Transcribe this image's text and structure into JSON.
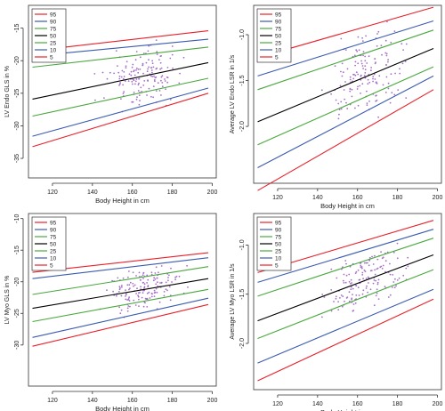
{
  "chart_data": [
    {
      "type": "line",
      "xlabel": "Body Height in cm",
      "ylabel": "LV Endo GLS in %",
      "xlim": [
        108,
        202
      ],
      "ylim": [
        -38,
        -11.5
      ],
      "xticks": [
        "120",
        "140",
        "160",
        "180",
        "200"
      ],
      "yticks": [
        "-15",
        "-20",
        "-25",
        "-30",
        "-35"
      ],
      "xtick_values": [
        120,
        140,
        160,
        180,
        200
      ],
      "ytick_values": [
        -15,
        -20,
        -25,
        -30,
        -35
      ],
      "legend_position": "top-left",
      "series": [
        {
          "name": "95",
          "color": "#e8202a",
          "x": [
            110,
            198
          ],
          "y": [
            -18.5,
            -15.4
          ]
        },
        {
          "name": "90",
          "color": "#3a5bb0",
          "x": [
            110,
            198
          ],
          "y": [
            -19.3,
            -16.7
          ]
        },
        {
          "name": "75",
          "color": "#49a83d",
          "x": [
            110,
            198
          ],
          "y": [
            -21.0,
            -17.9
          ]
        },
        {
          "name": "50",
          "color": "#000000",
          "x": [
            110,
            198
          ],
          "y": [
            -25.9,
            -20.3
          ]
        },
        {
          "name": "25",
          "color": "#49a83d",
          "x": [
            110,
            198
          ],
          "y": [
            -28.5,
            -22.7
          ]
        },
        {
          "name": "10",
          "color": "#3a5bb0",
          "x": [
            110,
            198
          ],
          "y": [
            -31.6,
            -24.2
          ]
        },
        {
          "name": "5",
          "color": "#e8202a",
          "x": [
            110,
            198
          ],
          "y": [
            -33.2,
            -25.0
          ]
        }
      ]
    },
    {
      "type": "line",
      "xlabel": "Body Height in cm",
      "ylabel": "Average LV Endo LSR in 1/s",
      "xlim": [
        108,
        202
      ],
      "ylim": [
        -2.62,
        -0.68
      ],
      "xticks": [
        "120",
        "140",
        "160",
        "180",
        "200"
      ],
      "yticks": [
        "-1.0",
        "-1.5",
        "-2.0"
      ],
      "xtick_values": [
        120,
        140,
        160,
        180,
        200
      ],
      "ytick_values": [
        -1.0,
        -1.5,
        -2.0
      ],
      "legend_position": "top-left",
      "series": [
        {
          "name": "95",
          "color": "#e8202a",
          "x": [
            110,
            198
          ],
          "y": [
            -1.25,
            -0.7
          ]
        },
        {
          "name": "90",
          "color": "#3a5bb0",
          "x": [
            110,
            198
          ],
          "y": [
            -1.45,
            -0.85
          ]
        },
        {
          "name": "75",
          "color": "#49a83d",
          "x": [
            110,
            198
          ],
          "y": [
            -1.6,
            -0.95
          ]
        },
        {
          "name": "50",
          "color": "#000000",
          "x": [
            110,
            198
          ],
          "y": [
            -1.95,
            -1.15
          ]
        },
        {
          "name": "25",
          "color": "#49a83d",
          "x": [
            110,
            198
          ],
          "y": [
            -2.2,
            -1.35
          ]
        },
        {
          "name": "10",
          "color": "#3a5bb0",
          "x": [
            110,
            198
          ],
          "y": [
            -2.45,
            -1.45
          ]
        },
        {
          "name": "5",
          "color": "#e8202a",
          "x": [
            110,
            198
          ],
          "y": [
            -2.7,
            -1.6
          ]
        }
      ]
    },
    {
      "type": "line",
      "xlabel": "Body Height in cm",
      "ylabel": "LV Myo GLS in %",
      "xlim": [
        108,
        202
      ],
      "ylim": [
        -36.5,
        -9.2
      ],
      "xticks": [
        "120",
        "140",
        "160",
        "180",
        "200"
      ],
      "yticks": [
        "-10",
        "-15",
        "-20",
        "-25",
        "-30"
      ],
      "xtick_values": [
        120,
        140,
        160,
        180,
        200
      ],
      "ytick_values": [
        -10,
        -15,
        -20,
        -25,
        -30
      ],
      "legend_position": "top-left",
      "series": [
        {
          "name": "95",
          "color": "#e8202a",
          "x": [
            110,
            198
          ],
          "y": [
            -18.5,
            -15.4
          ]
        },
        {
          "name": "90",
          "color": "#3a5bb0",
          "x": [
            110,
            198
          ],
          "y": [
            -19.5,
            -16.2
          ]
        },
        {
          "name": "75",
          "color": "#49a83d",
          "x": [
            110,
            198
          ],
          "y": [
            -22.0,
            -17.6
          ]
        },
        {
          "name": "50",
          "color": "#000000",
          "x": [
            110,
            198
          ],
          "y": [
            -24.2,
            -19.5
          ]
        },
        {
          "name": "25",
          "color": "#49a83d",
          "x": [
            110,
            198
          ],
          "y": [
            -26.3,
            -21.2
          ]
        },
        {
          "name": "10",
          "color": "#3a5bb0",
          "x": [
            110,
            198
          ],
          "y": [
            -28.8,
            -22.6
          ]
        },
        {
          "name": "5",
          "color": "#e8202a",
          "x": [
            110,
            198
          ],
          "y": [
            -30.2,
            -23.6
          ]
        }
      ]
    },
    {
      "type": "line",
      "xlabel": "Body Height in cm",
      "ylabel": "Average LV Myo LSR in 1/s",
      "xlim": [
        108,
        202
      ],
      "ylim": [
        -2.47,
        -0.68
      ],
      "xticks": [
        "120",
        "140",
        "160",
        "180",
        "200"
      ],
      "yticks": [
        "-1.0",
        "-1.5",
        "-2.0"
      ],
      "xtick_values": [
        120,
        140,
        160,
        180,
        200
      ],
      "ytick_values": [
        -1.0,
        -1.5,
        -2.0
      ],
      "legend_position": "top-left",
      "series": [
        {
          "name": "95",
          "color": "#e8202a",
          "x": [
            110,
            198
          ],
          "y": [
            -1.28,
            -0.75
          ]
        },
        {
          "name": "90",
          "color": "#3a5bb0",
          "x": [
            110,
            198
          ],
          "y": [
            -1.38,
            -0.84
          ]
        },
        {
          "name": "75",
          "color": "#49a83d",
          "x": [
            110,
            198
          ],
          "y": [
            -1.52,
            -0.93
          ]
        },
        {
          "name": "50",
          "color": "#000000",
          "x": [
            110,
            198
          ],
          "y": [
            -1.77,
            -1.1
          ]
        },
        {
          "name": "25",
          "color": "#49a83d",
          "x": [
            110,
            198
          ],
          "y": [
            -1.95,
            -1.25
          ]
        },
        {
          "name": "10",
          "color": "#3a5bb0",
          "x": [
            110,
            198
          ],
          "y": [
            -2.2,
            -1.45
          ]
        },
        {
          "name": "5",
          "color": "#e8202a",
          "x": [
            110,
            198
          ],
          "y": [
            -2.38,
            -1.55
          ]
        }
      ]
    }
  ]
}
